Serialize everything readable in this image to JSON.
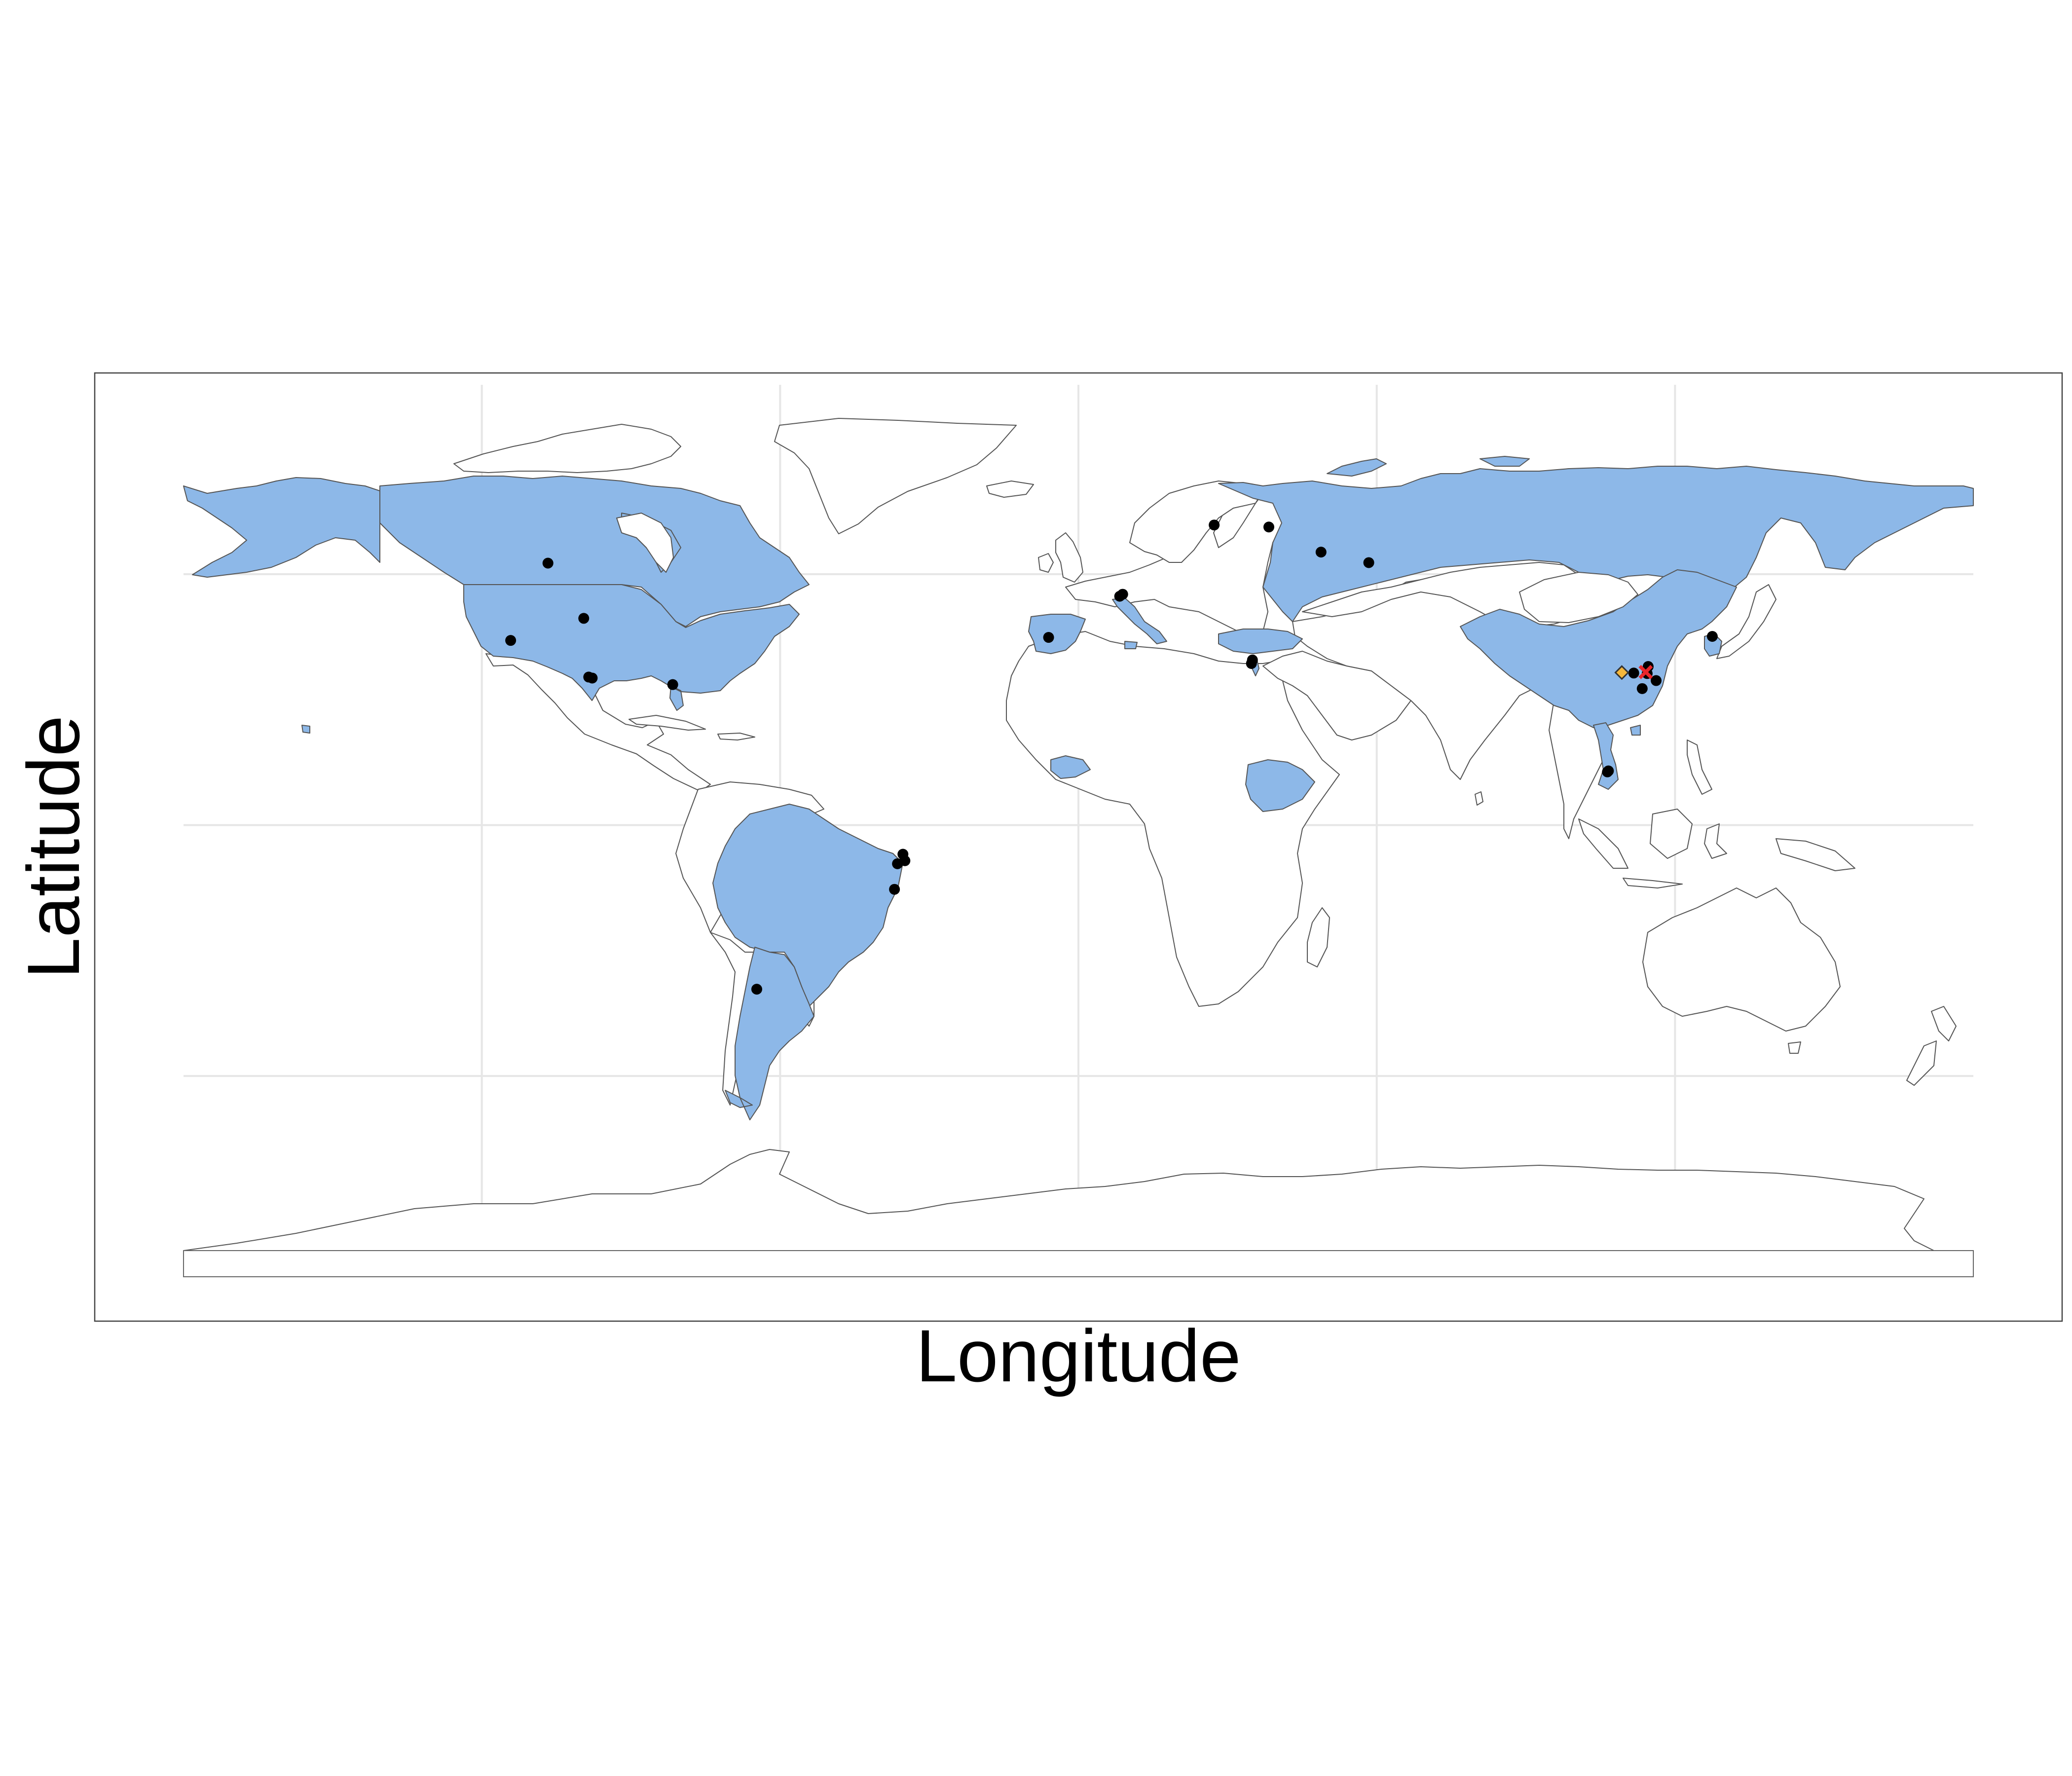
{
  "axis": {
    "x_title": "Longitude",
    "y_title": "Latitude"
  },
  "colors": {
    "highlight_fill": "#8db8e8",
    "land_fill": "#ffffff",
    "border": "#555555",
    "point": "#000000",
    "special_point_orange": "#f5b73b",
    "special_point_red": "#e8262b",
    "grid": "#e6e6e6"
  },
  "map": {
    "projection": "equirectangular",
    "lon_range": [
      -180,
      180
    ],
    "lat_range": [
      -90,
      90
    ],
    "graticule_lon": [
      -120,
      -60,
      0,
      60,
      120
    ],
    "graticule_lat": [
      -50,
      0,
      50
    ],
    "highlighted_countries": [
      "Canada",
      "United States",
      "Brazil",
      "Argentina",
      "Spain",
      "Italy",
      "Russia",
      "China",
      "South Korea",
      "Vietnam",
      "Turkey",
      "Israel",
      "Ethiopia",
      "Burkina Faso"
    ]
  },
  "points": [
    {
      "lon": -106.7,
      "lat": 52.2,
      "style": "black"
    },
    {
      "lon": -99.5,
      "lat": 41.2,
      "style": "black"
    },
    {
      "lon": -114.2,
      "lat": 36.8,
      "style": "black"
    },
    {
      "lon": -98.5,
      "lat": 29.5,
      "style": "black"
    },
    {
      "lon": -97.8,
      "lat": 29.3,
      "style": "black"
    },
    {
      "lon": -81.6,
      "lat": 28.0,
      "style": "black"
    },
    {
      "lon": -35.3,
      "lat": -5.8,
      "style": "black"
    },
    {
      "lon": -34.9,
      "lat": -7.1,
      "style": "black"
    },
    {
      "lon": -36.4,
      "lat": -7.7,
      "style": "black"
    },
    {
      "lon": -37.0,
      "lat": -12.8,
      "style": "black"
    },
    {
      "lon": -64.7,
      "lat": -32.7,
      "style": "black"
    },
    {
      "lon": -6.0,
      "lat": 37.4,
      "style": "black"
    },
    {
      "lon": 8.3,
      "lat": 45.6,
      "style": "black"
    },
    {
      "lon": 8.9,
      "lat": 46.0,
      "style": "black"
    },
    {
      "lon": 27.3,
      "lat": 59.8,
      "style": "black"
    },
    {
      "lon": 38.3,
      "lat": 59.4,
      "style": "black"
    },
    {
      "lon": 48.8,
      "lat": 54.4,
      "style": "black"
    },
    {
      "lon": 58.4,
      "lat": 52.3,
      "style": "black"
    },
    {
      "lon": 35.0,
      "lat": 32.9,
      "style": "black"
    },
    {
      "lon": 34.8,
      "lat": 32.2,
      "style": "black"
    },
    {
      "lon": 127.5,
      "lat": 37.6,
      "style": "black"
    },
    {
      "lon": 111.7,
      "lat": 30.3,
      "style": "black"
    },
    {
      "lon": 114.6,
      "lat": 31.6,
      "style": "black"
    },
    {
      "lon": 113.4,
      "lat": 27.2,
      "style": "black"
    },
    {
      "lon": 116.2,
      "lat": 28.8,
      "style": "black"
    },
    {
      "lon": 114.4,
      "lat": 30.2,
      "style": "black"
    },
    {
      "lon": 106.6,
      "lat": 10.8,
      "style": "black"
    },
    {
      "lon": 106.4,
      "lat": 10.6,
      "style": "black"
    },
    {
      "lon": 109.3,
      "lat": 30.4,
      "style": "orange"
    },
    {
      "lon": 114.1,
      "lat": 30.5,
      "style": "red"
    }
  ]
}
